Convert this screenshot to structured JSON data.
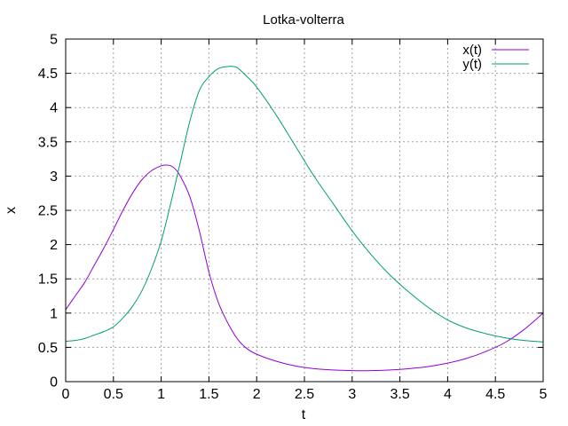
{
  "chart_data": {
    "type": "line",
    "title": "Lotka-volterra",
    "xlabel": "t",
    "ylabel": "x",
    "xlim": [
      0,
      5
    ],
    "ylim": [
      0,
      5
    ],
    "xticks": [
      "0",
      "0.5",
      "1",
      "1.5",
      "2",
      "2.5",
      "3",
      "3.5",
      "4",
      "4.5",
      "5"
    ],
    "yticks": [
      "0",
      "0.5",
      "1",
      "1.5",
      "2",
      "2.5",
      "3",
      "3.5",
      "4",
      "4.5",
      "5"
    ],
    "grid": true,
    "legend_position": "top-right",
    "series": [
      {
        "name": "x(t)",
        "color": "#9400d3",
        "x": [
          0,
          0.1,
          0.2,
          0.3,
          0.4,
          0.5,
          0.6,
          0.7,
          0.8,
          0.9,
          1.0,
          1.05,
          1.1,
          1.15,
          1.2,
          1.3,
          1.4,
          1.5,
          1.6,
          1.7,
          1.8,
          1.9,
          2.0,
          2.2,
          2.4,
          2.6,
          2.8,
          3.0,
          3.2,
          3.4,
          3.6,
          3.8,
          4.0,
          4.2,
          4.4,
          4.6,
          4.8,
          5.0
        ],
        "y": [
          1.05,
          1.25,
          1.45,
          1.7,
          1.95,
          2.22,
          2.5,
          2.75,
          2.95,
          3.08,
          3.15,
          3.16,
          3.15,
          3.1,
          3.0,
          2.7,
          2.2,
          1.6,
          1.15,
          0.85,
          0.62,
          0.48,
          0.4,
          0.3,
          0.23,
          0.19,
          0.17,
          0.16,
          0.16,
          0.17,
          0.19,
          0.22,
          0.27,
          0.34,
          0.44,
          0.57,
          0.76,
          1.0
        ]
      },
      {
        "name": "y(t)",
        "color": "#009e73",
        "x": [
          0,
          0.1,
          0.2,
          0.3,
          0.4,
          0.5,
          0.6,
          0.7,
          0.8,
          0.9,
          1.0,
          1.1,
          1.2,
          1.3,
          1.4,
          1.5,
          1.6,
          1.7,
          1.75,
          1.8,
          1.9,
          2.0,
          2.2,
          2.4,
          2.6,
          2.8,
          3.0,
          3.2,
          3.4,
          3.6,
          3.8,
          4.0,
          4.2,
          4.4,
          4.6,
          4.8,
          5.0
        ],
        "y": [
          0.59,
          0.6,
          0.63,
          0.68,
          0.73,
          0.8,
          0.93,
          1.1,
          1.33,
          1.65,
          2.05,
          2.6,
          3.2,
          3.8,
          4.25,
          4.45,
          4.57,
          4.6,
          4.6,
          4.58,
          4.45,
          4.3,
          3.9,
          3.45,
          3.0,
          2.6,
          2.2,
          1.85,
          1.55,
          1.3,
          1.08,
          0.9,
          0.78,
          0.7,
          0.64,
          0.6,
          0.58
        ]
      }
    ]
  }
}
